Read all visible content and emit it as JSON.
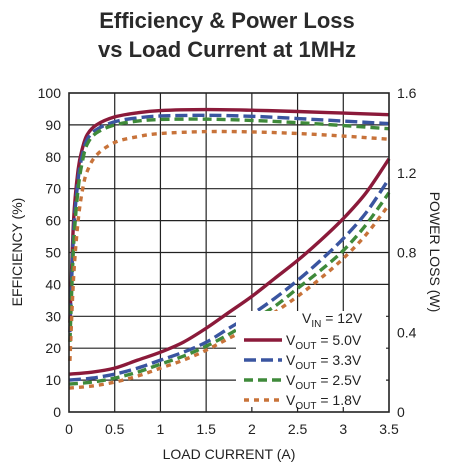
{
  "chart_data": {
    "type": "line",
    "title_line1": "Efficiency & Power Loss",
    "title_line2": "vs Load Current at 1MHz",
    "xlabel": "LOAD CURRENT (A)",
    "ylabel_left": "EFFICIENCY (%)",
    "ylabel_right": "POWER LOSS (W)",
    "xlim": [
      0,
      3.5
    ],
    "ylim_left": [
      0,
      100
    ],
    "ylim_right": [
      0,
      1.6
    ],
    "grid": true,
    "x_ticks": [
      "0",
      "0.5",
      "1",
      "1.5",
      "2",
      "2.5",
      "3",
      "3.5"
    ],
    "y_left_ticks": [
      "0",
      "10",
      "20",
      "30",
      "40",
      "50",
      "60",
      "70",
      "80",
      "90",
      "100"
    ],
    "y_right_ticks": [
      "0",
      "0.4",
      "0.8",
      "1.2",
      "1.6"
    ],
    "legend": {
      "vin": {
        "prefix": "V",
        "sub": "IN",
        "suffix": " = 12V"
      },
      "entries": [
        {
          "prefix": "V",
          "sub": "OUT",
          "suffix": " = 5.0V"
        },
        {
          "prefix": "V",
          "sub": "OUT",
          "suffix": " = 3.3V"
        },
        {
          "prefix": "V",
          "sub": "OUT",
          "suffix": " = 2.5V"
        },
        {
          "prefix": "V",
          "sub": "OUT",
          "suffix": " = 1.8V"
        }
      ]
    },
    "series": [
      {
        "color": "#8b1a3a",
        "dash": "",
        "efficiency": [
          [
            0.01,
            28
          ],
          [
            0.05,
            60
          ],
          [
            0.1,
            76
          ],
          [
            0.15,
            83
          ],
          [
            0.2,
            87
          ],
          [
            0.3,
            90
          ],
          [
            0.5,
            92.5
          ],
          [
            0.75,
            93.8
          ],
          [
            1,
            94.5
          ],
          [
            1.5,
            94.8
          ],
          [
            2,
            94.6
          ],
          [
            2.5,
            94.2
          ],
          [
            3,
            93.7
          ],
          [
            3.5,
            93.2
          ]
        ],
        "loss": [
          [
            0,
            0.19
          ],
          [
            0.25,
            0.2
          ],
          [
            0.5,
            0.22
          ],
          [
            0.75,
            0.26
          ],
          [
            1,
            0.3
          ],
          [
            1.25,
            0.35
          ],
          [
            1.5,
            0.42
          ],
          [
            1.75,
            0.5
          ],
          [
            2,
            0.58
          ],
          [
            2.25,
            0.67
          ],
          [
            2.5,
            0.76
          ],
          [
            2.75,
            0.86
          ],
          [
            3,
            0.97
          ],
          [
            3.25,
            1.1
          ],
          [
            3.5,
            1.27
          ]
        ]
      },
      {
        "color": "#3a55a0",
        "dash": "12,5",
        "efficiency": [
          [
            0.01,
            25
          ],
          [
            0.05,
            56
          ],
          [
            0.1,
            73
          ],
          [
            0.15,
            81
          ],
          [
            0.2,
            85.5
          ],
          [
            0.3,
            88.5
          ],
          [
            0.5,
            91
          ],
          [
            0.75,
            92.2
          ],
          [
            1,
            92.8
          ],
          [
            1.5,
            93
          ],
          [
            2,
            92.7
          ],
          [
            2.5,
            92
          ],
          [
            3,
            91.2
          ],
          [
            3.5,
            90.4
          ]
        ],
        "loss": [
          [
            0,
            0.16
          ],
          [
            0.25,
            0.17
          ],
          [
            0.5,
            0.19
          ],
          [
            0.75,
            0.22
          ],
          [
            1,
            0.26
          ],
          [
            1.25,
            0.3
          ],
          [
            1.5,
            0.35
          ],
          [
            1.75,
            0.42
          ],
          [
            2,
            0.49
          ],
          [
            2.25,
            0.57
          ],
          [
            2.5,
            0.66
          ],
          [
            2.75,
            0.76
          ],
          [
            3,
            0.87
          ],
          [
            3.25,
            1
          ],
          [
            3.5,
            1.17
          ]
        ]
      },
      {
        "color": "#3f8a3a",
        "dash": "9,5",
        "efficiency": [
          [
            0.01,
            22
          ],
          [
            0.05,
            52
          ],
          [
            0.1,
            70
          ],
          [
            0.15,
            79
          ],
          [
            0.2,
            84
          ],
          [
            0.3,
            87.5
          ],
          [
            0.5,
            90
          ],
          [
            0.75,
            91.2
          ],
          [
            1,
            91.7
          ],
          [
            1.5,
            91.8
          ],
          [
            2,
            91.4
          ],
          [
            2.5,
            90.7
          ],
          [
            3,
            89.8
          ],
          [
            3.5,
            88.8
          ]
        ],
        "loss": [
          [
            0,
            0.14
          ],
          [
            0.25,
            0.15
          ],
          [
            0.5,
            0.17
          ],
          [
            0.75,
            0.2
          ],
          [
            1,
            0.24
          ],
          [
            1.25,
            0.28
          ],
          [
            1.5,
            0.33
          ],
          [
            1.75,
            0.39
          ],
          [
            2,
            0.46
          ],
          [
            2.25,
            0.53
          ],
          [
            2.5,
            0.62
          ],
          [
            2.75,
            0.71
          ],
          [
            3,
            0.81
          ],
          [
            3.25,
            0.94
          ],
          [
            3.5,
            1.1
          ]
        ]
      },
      {
        "color": "#c8733a",
        "dash": "5,5",
        "efficiency": [
          [
            0.01,
            16
          ],
          [
            0.05,
            42
          ],
          [
            0.1,
            60
          ],
          [
            0.15,
            70
          ],
          [
            0.2,
            75.5
          ],
          [
            0.3,
            80.5
          ],
          [
            0.5,
            84.5
          ],
          [
            0.75,
            86.3
          ],
          [
            1,
            87.3
          ],
          [
            1.5,
            87.9
          ],
          [
            2,
            87.8
          ],
          [
            2.5,
            87.3
          ],
          [
            3,
            86.5
          ],
          [
            3.5,
            85.5
          ]
        ],
        "loss": [
          [
            0,
            0.12
          ],
          [
            0.25,
            0.13
          ],
          [
            0.5,
            0.15
          ],
          [
            0.75,
            0.18
          ],
          [
            1,
            0.22
          ],
          [
            1.25,
            0.26
          ],
          [
            1.5,
            0.31
          ],
          [
            1.75,
            0.37
          ],
          [
            2,
            0.43
          ],
          [
            2.25,
            0.5
          ],
          [
            2.5,
            0.58
          ],
          [
            2.75,
            0.67
          ],
          [
            3,
            0.77
          ],
          [
            3.25,
            0.89
          ],
          [
            3.5,
            1.04
          ]
        ]
      }
    ]
  }
}
